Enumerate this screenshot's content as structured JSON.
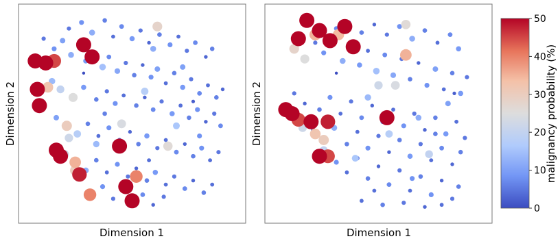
{
  "chart_data": [
    {
      "type": "scatter",
      "xlabel": "Dimension 1",
      "ylabel": "Dimension 2",
      "xticks": [],
      "yticks": [],
      "point_attributes": [
        "x",
        "y",
        "malignancy probability (%)"
      ],
      "points": [
        [
          0.08,
          0.87,
          5
        ],
        [
          0.13,
          0.82,
          8
        ],
        [
          0.17,
          0.86,
          10
        ],
        [
          0.21,
          0.79,
          12
        ],
        [
          0.25,
          0.84,
          6
        ],
        [
          0.28,
          0.76,
          9
        ],
        [
          0.32,
          0.8,
          4
        ],
        [
          0.36,
          0.73,
          15
        ],
        [
          0.39,
          0.78,
          7
        ],
        [
          0.43,
          0.71,
          11
        ],
        [
          0.47,
          0.75,
          5
        ],
        [
          0.51,
          0.69,
          6
        ],
        [
          0.55,
          0.74,
          3
        ],
        [
          0.59,
          0.68,
          8
        ],
        [
          0.62,
          0.72,
          10
        ],
        [
          0.66,
          0.65,
          4
        ],
        [
          0.7,
          0.7,
          6
        ],
        [
          0.74,
          0.63,
          9
        ],
        [
          0.78,
          0.67,
          5
        ],
        [
          0.82,
          0.6,
          7
        ],
        [
          0.86,
          0.64,
          4
        ],
        [
          0.9,
          0.58,
          6
        ],
        [
          0.93,
          0.62,
          3
        ],
        [
          0.2,
          0.92,
          5
        ],
        [
          0.26,
          0.95,
          8
        ],
        [
          0.31,
          0.9,
          12
        ],
        [
          0.37,
          0.96,
          6
        ],
        [
          0.41,
          0.88,
          4
        ],
        [
          0.45,
          0.93,
          7
        ],
        [
          0.5,
          0.87,
          9
        ],
        [
          0.54,
          0.91,
          5
        ],
        [
          0.58,
          0.85,
          3
        ],
        [
          0.63,
          0.89,
          6
        ],
        [
          0.68,
          0.84,
          8
        ],
        [
          0.72,
          0.88,
          4
        ],
        [
          0.76,
          0.81,
          5
        ],
        [
          0.8,
          0.85,
          7
        ],
        [
          0.85,
          0.78,
          3
        ],
        [
          0.88,
          0.82,
          6
        ],
        [
          0.12,
          0.66,
          14
        ],
        [
          0.16,
          0.62,
          20
        ],
        [
          0.22,
          0.58,
          25
        ],
        [
          0.27,
          0.63,
          9
        ],
        [
          0.33,
          0.57,
          6
        ],
        [
          0.38,
          0.61,
          5
        ],
        [
          0.42,
          0.55,
          8
        ],
        [
          0.46,
          0.59,
          4
        ],
        [
          0.52,
          0.54,
          6
        ],
        [
          0.56,
          0.58,
          3
        ],
        [
          0.6,
          0.52,
          7
        ],
        [
          0.64,
          0.56,
          5
        ],
        [
          0.69,
          0.5,
          9
        ],
        [
          0.73,
          0.54,
          4
        ],
        [
          0.77,
          0.48,
          6
        ],
        [
          0.81,
          0.52,
          8
        ],
        [
          0.85,
          0.46,
          3
        ],
        [
          0.89,
          0.5,
          5
        ],
        [
          0.92,
          0.44,
          7
        ],
        [
          0.14,
          0.48,
          10
        ],
        [
          0.19,
          0.44,
          30
        ],
        [
          0.24,
          0.4,
          18
        ],
        [
          0.29,
          0.45,
          6
        ],
        [
          0.34,
          0.39,
          4
        ],
        [
          0.39,
          0.43,
          8
        ],
        [
          0.44,
          0.37,
          5
        ],
        [
          0.49,
          0.41,
          3
        ],
        [
          0.53,
          0.35,
          6
        ],
        [
          0.57,
          0.39,
          9
        ],
        [
          0.62,
          0.33,
          5
        ],
        [
          0.66,
          0.37,
          4
        ],
        [
          0.71,
          0.31,
          7
        ],
        [
          0.75,
          0.35,
          3
        ],
        [
          0.79,
          0.29,
          6
        ],
        [
          0.83,
          0.33,
          8
        ],
        [
          0.87,
          0.27,
          4
        ],
        [
          0.91,
          0.31,
          5
        ],
        [
          0.18,
          0.3,
          22
        ],
        [
          0.23,
          0.26,
          35
        ],
        [
          0.28,
          0.22,
          12
        ],
        [
          0.33,
          0.27,
          6
        ],
        [
          0.38,
          0.21,
          4
        ],
        [
          0.43,
          0.25,
          8
        ],
        [
          0.48,
          0.19,
          5
        ],
        [
          0.52,
          0.23,
          3
        ],
        [
          0.57,
          0.17,
          6
        ],
        [
          0.61,
          0.21,
          9
        ],
        [
          0.66,
          0.15,
          4
        ],
        [
          0.7,
          0.19,
          5
        ],
        [
          0.75,
          0.13,
          7
        ],
        [
          0.79,
          0.17,
          3
        ],
        [
          0.84,
          0.11,
          6
        ],
        [
          0.88,
          0.15,
          4
        ],
        [
          0.3,
          0.1,
          40
        ],
        [
          0.36,
          0.14,
          8
        ],
        [
          0.41,
          0.08,
          5
        ],
        [
          0.46,
          0.12,
          6
        ],
        [
          0.51,
          0.06,
          4
        ],
        [
          0.55,
          0.1,
          7
        ],
        [
          0.6,
          0.05,
          3
        ],
        [
          0.65,
          0.09,
          5
        ],
        [
          0.04,
          0.76,
          50
        ],
        [
          0.05,
          0.62,
          50
        ],
        [
          0.06,
          0.54,
          50
        ],
        [
          0.09,
          0.75,
          50
        ],
        [
          0.13,
          0.76,
          45
        ],
        [
          0.27,
          0.84,
          50
        ],
        [
          0.31,
          0.78,
          50
        ],
        [
          0.14,
          0.32,
          50
        ],
        [
          0.16,
          0.29,
          50
        ],
        [
          0.25,
          0.2,
          48
        ],
        [
          0.44,
          0.34,
          50
        ],
        [
          0.47,
          0.14,
          50
        ],
        [
          0.52,
          0.19,
          40
        ],
        [
          0.5,
          0.07,
          50
        ],
        [
          0.62,
          0.93,
          28
        ],
        [
          0.2,
          0.38,
          22
        ],
        [
          0.1,
          0.63,
          32
        ],
        [
          0.23,
          0.22,
          30
        ],
        [
          0.67,
          0.34,
          26
        ],
        [
          0.45,
          0.45,
          24
        ],
        [
          0.56,
          0.61,
          18
        ],
        [
          0.71,
          0.44,
          16
        ],
        [
          0.33,
          0.35,
          14
        ],
        [
          0.6,
          0.82,
          12
        ],
        [
          0.74,
          0.73,
          10
        ],
        [
          0.82,
          0.39,
          8
        ],
        [
          0.37,
          0.5,
          6
        ],
        [
          0.58,
          0.27,
          4
        ],
        [
          0.79,
          0.56,
          2
        ],
        [
          0.27,
          0.7,
          0
        ]
      ]
    },
    {
      "type": "scatter",
      "xlabel": "Dimension 1",
      "ylabel": "Dimension 2",
      "xticks": [],
      "yticks": [],
      "point_attributes": [
        "x",
        "y",
        "malignancy probability (%)"
      ],
      "points": [
        [
          0.2,
          0.85,
          5
        ],
        [
          0.24,
          0.8,
          8
        ],
        [
          0.28,
          0.88,
          10
        ],
        [
          0.33,
          0.76,
          12
        ],
        [
          0.37,
          0.83,
          6
        ],
        [
          0.41,
          0.74,
          9
        ],
        [
          0.45,
          0.81,
          4
        ],
        [
          0.49,
          0.71,
          15
        ],
        [
          0.53,
          0.79,
          7
        ],
        [
          0.57,
          0.69,
          11
        ],
        [
          0.61,
          0.77,
          5
        ],
        [
          0.65,
          0.67,
          6
        ],
        [
          0.69,
          0.75,
          3
        ],
        [
          0.73,
          0.64,
          8
        ],
        [
          0.77,
          0.72,
          10
        ],
        [
          0.81,
          0.62,
          4
        ],
        [
          0.85,
          0.7,
          6
        ],
        [
          0.89,
          0.6,
          9
        ],
        [
          0.92,
          0.68,
          5
        ],
        [
          0.3,
          0.92,
          7
        ],
        [
          0.36,
          0.95,
          4
        ],
        [
          0.42,
          0.9,
          6
        ],
        [
          0.48,
          0.94,
          3
        ],
        [
          0.54,
          0.89,
          5
        ],
        [
          0.6,
          0.93,
          8
        ],
        [
          0.66,
          0.87,
          12
        ],
        [
          0.72,
          0.91,
          6
        ],
        [
          0.78,
          0.85,
          4
        ],
        [
          0.84,
          0.89,
          7
        ],
        [
          0.88,
          0.82,
          9
        ],
        [
          0.1,
          0.6,
          5
        ],
        [
          0.15,
          0.55,
          3
        ],
        [
          0.22,
          0.52,
          6
        ],
        [
          0.27,
          0.58,
          8
        ],
        [
          0.32,
          0.5,
          4
        ],
        [
          0.37,
          0.56,
          5
        ],
        [
          0.42,
          0.48,
          7
        ],
        [
          0.47,
          0.54,
          3
        ],
        [
          0.52,
          0.46,
          6
        ],
        [
          0.57,
          0.52,
          4
        ],
        [
          0.62,
          0.44,
          8
        ],
        [
          0.67,
          0.5,
          5
        ],
        [
          0.72,
          0.42,
          3
        ],
        [
          0.77,
          0.48,
          6
        ],
        [
          0.82,
          0.4,
          9
        ],
        [
          0.87,
          0.46,
          4
        ],
        [
          0.91,
          0.38,
          5
        ],
        [
          0.19,
          0.42,
          7
        ],
        [
          0.24,
          0.37,
          30
        ],
        [
          0.29,
          0.43,
          12
        ],
        [
          0.35,
          0.35,
          6
        ],
        [
          0.4,
          0.41,
          4
        ],
        [
          0.45,
          0.33,
          8
        ],
        [
          0.5,
          0.39,
          5
        ],
        [
          0.55,
          0.31,
          3
        ],
        [
          0.6,
          0.37,
          6
        ],
        [
          0.65,
          0.29,
          9
        ],
        [
          0.7,
          0.35,
          5
        ],
        [
          0.75,
          0.27,
          4
        ],
        [
          0.8,
          0.33,
          7
        ],
        [
          0.85,
          0.25,
          3
        ],
        [
          0.89,
          0.31,
          6
        ],
        [
          0.3,
          0.26,
          8
        ],
        [
          0.35,
          0.21,
          4
        ],
        [
          0.4,
          0.28,
          5
        ],
        [
          0.45,
          0.18,
          6
        ],
        [
          0.5,
          0.24,
          3
        ],
        [
          0.55,
          0.15,
          7
        ],
        [
          0.6,
          0.22,
          5
        ],
        [
          0.65,
          0.12,
          4
        ],
        [
          0.7,
          0.19,
          6
        ],
        [
          0.75,
          0.1,
          8
        ],
        [
          0.8,
          0.17,
          3
        ],
        [
          0.85,
          0.08,
          5
        ],
        [
          0.88,
          0.14,
          6
        ],
        [
          0.42,
          0.07,
          4
        ],
        [
          0.52,
          0.05,
          6
        ],
        [
          0.62,
          0.06,
          5
        ],
        [
          0.72,
          0.04,
          3
        ],
        [
          0.8,
          0.05,
          4
        ],
        [
          0.16,
          0.96,
          50
        ],
        [
          0.12,
          0.87,
          50
        ],
        [
          0.06,
          0.52,
          50
        ],
        [
          0.09,
          0.5,
          50
        ],
        [
          0.12,
          0.47,
          45
        ],
        [
          0.22,
          0.91,
          50
        ],
        [
          0.27,
          0.86,
          50
        ],
        [
          0.34,
          0.93,
          50
        ],
        [
          0.38,
          0.83,
          50
        ],
        [
          0.18,
          0.46,
          50
        ],
        [
          0.26,
          0.46,
          48
        ],
        [
          0.22,
          0.29,
          50
        ],
        [
          0.26,
          0.29,
          45
        ],
        [
          0.54,
          0.48,
          50
        ],
        [
          0.1,
          0.82,
          28
        ],
        [
          0.2,
          0.89,
          35
        ],
        [
          0.22,
          0.28,
          30
        ],
        [
          0.15,
          0.77,
          25
        ],
        [
          0.14,
          0.43,
          22
        ],
        [
          0.2,
          0.4,
          32
        ],
        [
          0.24,
          0.32,
          20
        ],
        [
          0.63,
          0.79,
          35
        ],
        [
          0.55,
          0.4,
          18
        ],
        [
          0.63,
          0.94,
          26
        ],
        [
          0.31,
          0.89,
          34
        ],
        [
          0.45,
          0.58,
          14
        ],
        [
          0.69,
          0.48,
          12
        ],
        [
          0.58,
          0.64,
          24
        ],
        [
          0.83,
          0.55,
          10
        ],
        [
          0.39,
          0.28,
          16
        ],
        [
          0.66,
          0.18,
          8
        ],
        [
          0.77,
          0.4,
          6
        ],
        [
          0.48,
          0.12,
          4
        ],
        [
          0.86,
          0.6,
          2
        ],
        [
          0.3,
          0.7,
          0
        ],
        [
          0.5,
          0.64,
          22
        ],
        [
          0.74,
          0.3,
          20
        ]
      ]
    }
  ],
  "colorbar": {
    "label": "malignancy probability (%)",
    "ticks": [
      0,
      10,
      20,
      30,
      40,
      50
    ],
    "min": 0,
    "max": 50,
    "colormap": [
      "#3b4cc0",
      "#7396f5",
      "#b0cbfc",
      "#dddddd",
      "#f4c1a8",
      "#e7745b",
      "#b40426"
    ]
  }
}
